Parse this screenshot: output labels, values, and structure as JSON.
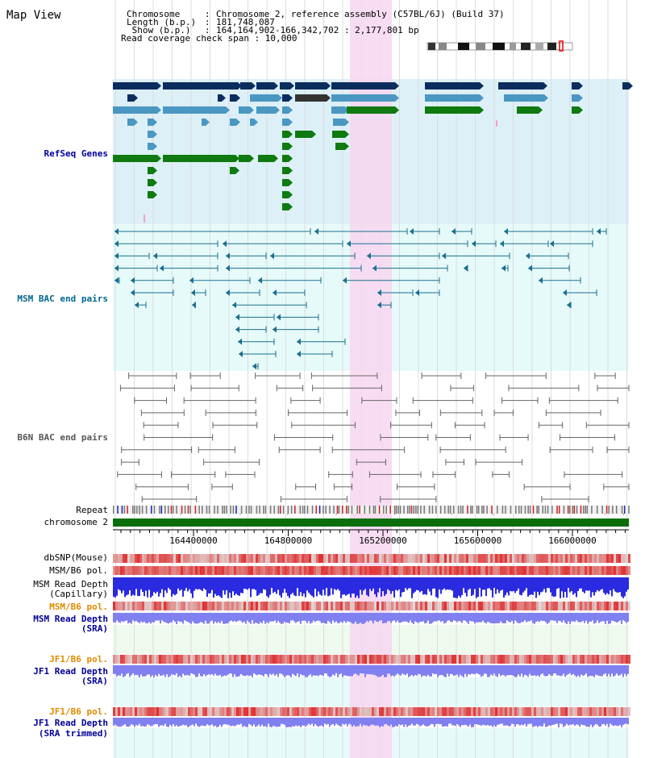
{
  "page": {
    "title": "Map View"
  },
  "info": {
    "rows": [
      {
        "label": "Chromosome",
        "value": "Chromosome 2, reference assembly (C57BL/6J) (Build 37)"
      },
      {
        "label": "Length (b.p.)",
        "value": "181,748,087"
      },
      {
        "label": " Show (b.p.)",
        "value": "164,164,902-166,342,702 : 2,177,801 bp"
      }
    ],
    "coverage": "Read coverage check span : 10,000"
  },
  "tracks": {
    "refseq": "RefSeq Genes",
    "msm_bac": "MSM BAC end pairs",
    "b6n_bac": "B6N BAC end pairs",
    "repeat": "Repeat",
    "chromosome": "chromosome 2",
    "dbsnp": "dbSNP(Mouse)",
    "msm_b6_pol": "MSM/B6 pol.",
    "msm_depth_cap": [
      "MSM Read Depth",
      "(Capillary)"
    ],
    "msm_b6_pol2": "MSM/B6 pol.",
    "msm_depth_sra": [
      "MSM Read Depth",
      "(SRA)"
    ],
    "jf1_b6_pol": "JF1/B6 pol.",
    "jf1_depth_sra": [
      "JF1 Read Depth",
      "(SRA)"
    ],
    "jf1_b6_pol2": "JF1/B6 pol.",
    "jf1_depth_trim": [
      "JF1 Read Depth",
      "(SRA trimmed)"
    ]
  },
  "axis": {
    "ticks": [
      "164400000",
      "164800000",
      "165200000",
      "165600000",
      "166000000"
    ]
  },
  "colors": {
    "refseq_bg": "#ddf0f8",
    "msm_bg": "#e6fafa",
    "highlight": "#f7d6f0",
    "gene_dark": "#0b2d5e",
    "gene_mid": "#4a97c2",
    "gene_green": "#0f7a0f",
    "msm_line": "#1b6f8f",
    "b6n_line": "#666666",
    "chrom_bar": "#0a6e0a",
    "label_blue": "#000099",
    "label_teal": "#00668c",
    "label_orange": "#e08a00",
    "snp_red": "#e03030",
    "depth_blue": "#2a2ae0",
    "depth_light": "#8080f0"
  }
}
